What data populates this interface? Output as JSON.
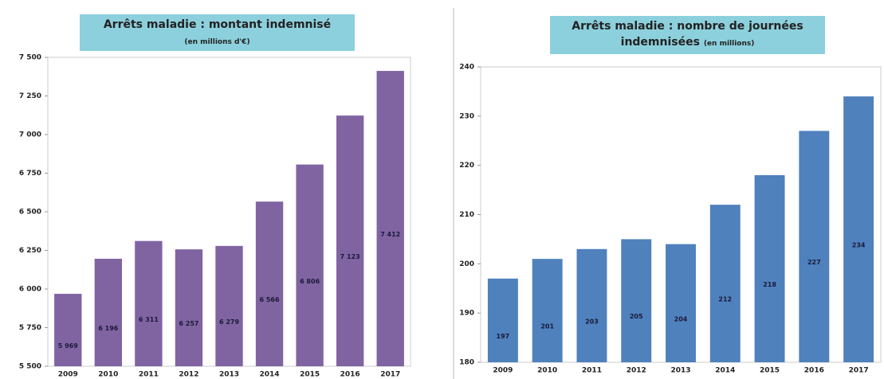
{
  "chart_data": [
    {
      "type": "bar",
      "title": "Arrêts maladie : montant indemnisé",
      "subtitle": "(en millions d'€)",
      "categories": [
        "2009",
        "2010",
        "2011",
        "2012",
        "2013",
        "2014",
        "2015",
        "2016",
        "2017"
      ],
      "values": [
        5969,
        6196,
        6311,
        6257,
        6279,
        6566,
        6806,
        7123,
        7412
      ],
      "value_labels": [
        "5 969",
        "6 196",
        "6 311",
        "6 257",
        "6 279",
        "6 566",
        "6 806",
        "7 123",
        "7 412"
      ],
      "color": "#8064a2",
      "ylim": [
        5500,
        7500
      ],
      "yticks": [
        {
          "value": 5500,
          "label": "5 500"
        },
        {
          "value": 5750,
          "label": "5 750"
        },
        {
          "value": 6000,
          "label": "6 000"
        },
        {
          "value": 6250,
          "label": "6 250"
        },
        {
          "value": 6500,
          "label": "6 500"
        },
        {
          "value": 6750,
          "label": "6 750"
        },
        {
          "value": 7000,
          "label": "7 000"
        },
        {
          "value": 7250,
          "label": "7 250"
        },
        {
          "value": 7500,
          "label": "7 500"
        }
      ]
    },
    {
      "type": "bar",
      "title": "Arrêts maladie : nombre de journées indemnisées",
      "subtitle": "(en millions)",
      "categories": [
        "2009",
        "2010",
        "2011",
        "2012",
        "2013",
        "2014",
        "2015",
        "2016",
        "2017"
      ],
      "values": [
        197,
        201,
        203,
        205,
        204,
        212,
        218,
        227,
        234
      ],
      "color": "#4f81bd",
      "ylim": [
        180,
        240
      ],
      "yticks": [
        180,
        190,
        200,
        210,
        220,
        230,
        240
      ]
    }
  ]
}
